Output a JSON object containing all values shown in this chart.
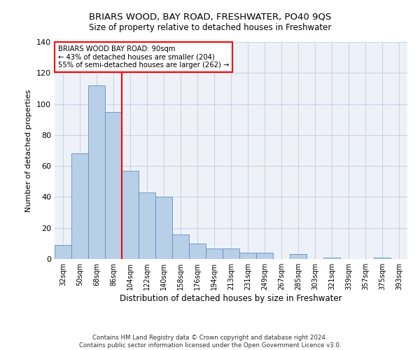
{
  "title": "BRIARS WOOD, BAY ROAD, FRESHWATER, PO40 9QS",
  "subtitle": "Size of property relative to detached houses in Freshwater",
  "xlabel": "Distribution of detached houses by size in Freshwater",
  "ylabel": "Number of detached properties",
  "bar_categories": [
    "32sqm",
    "50sqm",
    "68sqm",
    "86sqm",
    "104sqm",
    "122sqm",
    "140sqm",
    "158sqm",
    "176sqm",
    "194sqm",
    "213sqm",
    "231sqm",
    "249sqm",
    "267sqm",
    "285sqm",
    "303sqm",
    "321sqm",
    "339sqm",
    "357sqm",
    "375sqm",
    "393sqm"
  ],
  "bar_values": [
    9,
    68,
    112,
    95,
    57,
    43,
    40,
    16,
    10,
    7,
    7,
    4,
    4,
    0,
    3,
    0,
    1,
    0,
    0,
    1,
    0
  ],
  "bar_color": "#b8cfe8",
  "bar_edge_color": "#5b8fc9",
  "vline_x": 3.5,
  "vline_color": "red",
  "vline_linewidth": 1.5,
  "annotation_text": "BRIARS WOOD BAY ROAD: 90sqm\n← 43% of detached houses are smaller (204)\n55% of semi-detached houses are larger (262) →",
  "annotation_box_color": "white",
  "annotation_box_edge_color": "red",
  "ylim": [
    0,
    140
  ],
  "yticks": [
    0,
    20,
    40,
    60,
    80,
    100,
    120,
    140
  ],
  "footer_line1": "Contains HM Land Registry data © Crown copyright and database right 2024.",
  "footer_line2": "Contains public sector information licensed under the Open Government Licence v3.0.",
  "grid_color": "#c8d4e8",
  "background_color": "#eef2f8"
}
